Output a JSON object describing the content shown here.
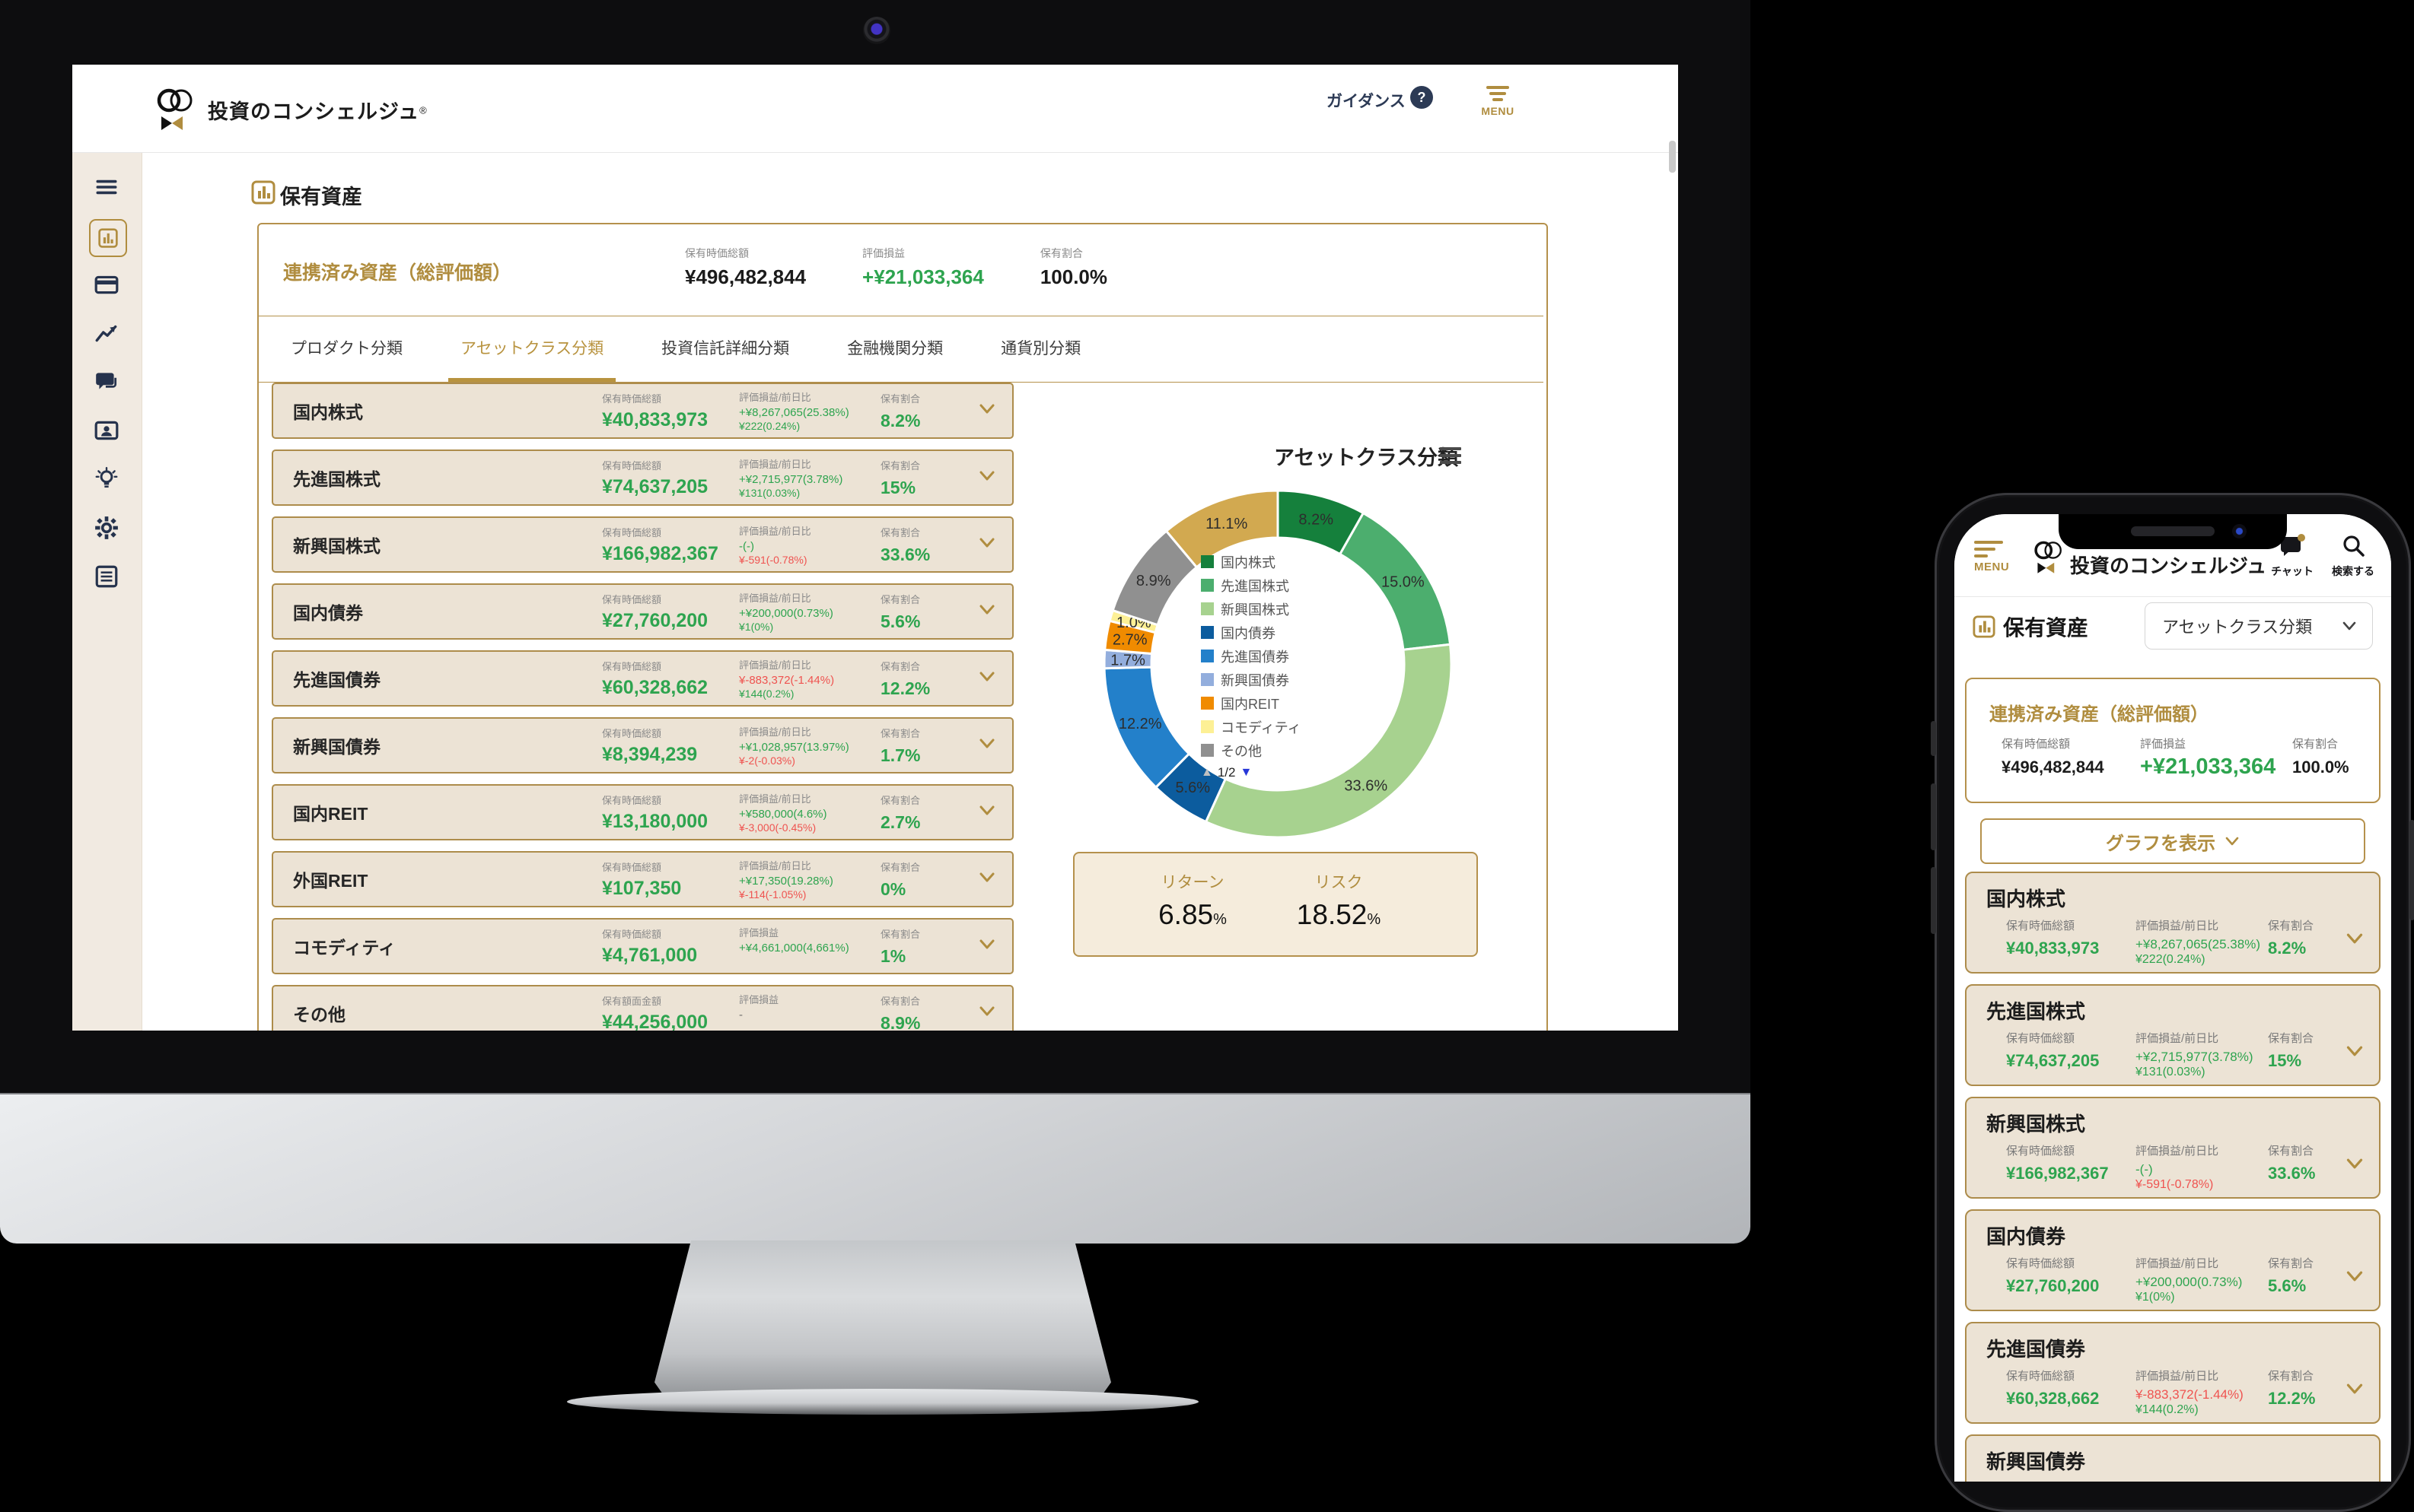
{
  "desktop": {
    "header": {
      "logo_text": "投資のコンシェルジュ",
      "logo_reg": "®",
      "guidance_label": "ガイダンス",
      "help_glyph": "?",
      "menu_label": "MENU"
    },
    "sidebar": {
      "icons": [
        "menu",
        "portfolio",
        "accounts",
        "performance",
        "chat",
        "profile",
        "ideas",
        "settings",
        "reports"
      ],
      "active_icon": "portfolio"
    },
    "page_title": "保有資産",
    "summary": {
      "title": "連携済み資産（総評価額）",
      "cols": [
        {
          "label": "保有時価総額",
          "value": "¥496,482,844",
          "tone": "dark"
        },
        {
          "label": "評価損益",
          "value": "+¥21,033,364",
          "tone": "pos"
        },
        {
          "label": "保有割合",
          "value": "100.0%",
          "tone": "dark"
        }
      ]
    },
    "tabs": [
      {
        "label": "プロダクト分類",
        "active": false
      },
      {
        "label": "アセットクラス分類",
        "active": true
      },
      {
        "label": "投資信託詳細分類",
        "active": false
      },
      {
        "label": "金融機関分類",
        "active": false
      },
      {
        "label": "通貨別分類",
        "active": false
      }
    ],
    "risk_return": {
      "return_label": "リターン",
      "return_value": "6.85",
      "risk_label": "リスク",
      "risk_value": "18.52",
      "pct": "%"
    }
  },
  "assets": [
    {
      "name": "国内株式",
      "amount_label": "保有時価総額",
      "amount": "¥40,833,973",
      "pl_label": "評価損益/前日比",
      "pl1": "+¥8,267,065(25.38%)",
      "pl1_c": "pos",
      "pl2": "¥222(0.24%)",
      "pl2_c": "pos",
      "ratio_label": "保有割合",
      "ratio": "8.2%"
    },
    {
      "name": "先進国株式",
      "amount_label": "保有時価総額",
      "amount": "¥74,637,205",
      "pl_label": "評価損益/前日比",
      "pl1": "+¥2,715,977(3.78%)",
      "pl1_c": "pos",
      "pl2": "¥131(0.03%)",
      "pl2_c": "pos",
      "ratio_label": "保有割合",
      "ratio": "15%"
    },
    {
      "name": "新興国株式",
      "amount_label": "保有時価総額",
      "amount": "¥166,982,367",
      "pl_label": "評価損益/前日比",
      "pl1": "-(-)",
      "pl1_c": "pos",
      "pl2": "¥-591(-0.78%)",
      "pl2_c": "neg",
      "ratio_label": "保有割合",
      "ratio": "33.6%"
    },
    {
      "name": "国内債券",
      "amount_label": "保有時価総額",
      "amount": "¥27,760,200",
      "pl_label": "評価損益/前日比",
      "pl1": "+¥200,000(0.73%)",
      "pl1_c": "pos",
      "pl2": "¥1(0%)",
      "pl2_c": "pos",
      "ratio_label": "保有割合",
      "ratio": "5.6%"
    },
    {
      "name": "先進国債券",
      "amount_label": "保有時価総額",
      "amount": "¥60,328,662",
      "pl_label": "評価損益/前日比",
      "pl1": "¥-883,372(-1.44%)",
      "pl1_c": "neg",
      "pl2": "¥144(0.2%)",
      "pl2_c": "pos",
      "ratio_label": "保有割合",
      "ratio": "12.2%"
    },
    {
      "name": "新興国債券",
      "amount_label": "保有時価総額",
      "amount": "¥8,394,239",
      "pl_label": "評価損益/前日比",
      "pl1": "+¥1,028,957(13.97%)",
      "pl1_c": "pos",
      "pl2": "¥-2(-0.03%)",
      "pl2_c": "neg",
      "ratio_label": "保有割合",
      "ratio": "1.7%"
    },
    {
      "name": "国内REIT",
      "amount_label": "保有時価総額",
      "amount": "¥13,180,000",
      "pl_label": "評価損益/前日比",
      "pl1": "+¥580,000(4.6%)",
      "pl1_c": "pos",
      "pl2": "¥-3,000(-0.45%)",
      "pl2_c": "neg",
      "ratio_label": "保有割合",
      "ratio": "2.7%"
    },
    {
      "name": "外国REIT",
      "amount_label": "保有時価総額",
      "amount": "¥107,350",
      "pl_label": "評価損益/前日比",
      "pl1": "+¥17,350(19.28%)",
      "pl1_c": "pos",
      "pl2": "¥-114(-1.05%)",
      "pl2_c": "neg",
      "ratio_label": "保有割合",
      "ratio": "0%"
    },
    {
      "name": "コモディティ",
      "amount_label": "保有時価総額",
      "amount": "¥4,761,000",
      "pl_label": "評価損益",
      "pl1": "+¥4,661,000(4,661%)",
      "pl1_c": "pos",
      "pl2": "",
      "pl2_c": "",
      "ratio_label": "保有割合",
      "ratio": "1%"
    },
    {
      "name": "その他",
      "amount_label": "保有額面金額",
      "amount": "¥44,256,000",
      "pl_label": "評価損益",
      "pl1": "-",
      "pl1_c": "muted",
      "pl2": "",
      "pl2_c": "",
      "ratio_label": "保有割合",
      "ratio": "8.9%"
    }
  ],
  "chart_data": {
    "type": "pie",
    "subtype": "donut",
    "title": "アセットクラス分類",
    "start_angle_deg": 0,
    "direction": "clockwise",
    "segments": [
      {
        "label": "国内株式",
        "value": 8.2,
        "color": "#15803c"
      },
      {
        "label": "先進国株式",
        "value": 15.0,
        "color": "#4cae6e"
      },
      {
        "label": "新興国株式",
        "value": 33.6,
        "color": "#a7d28f"
      },
      {
        "label": "国内債券",
        "value": 5.6,
        "color": "#0c5c9e"
      },
      {
        "label": "先進国債券",
        "value": 12.2,
        "color": "#2380ca"
      },
      {
        "label": "新興国債券",
        "value": 1.7,
        "color": "#93aedd"
      },
      {
        "label": "国内REIT",
        "value": 2.7,
        "color": "#f08b00"
      },
      {
        "label": "コモディティ",
        "value": 1.0,
        "color": "#fdf095"
      },
      {
        "label": "その他",
        "value": 8.9,
        "color": "#909090"
      },
      {
        "label": "",
        "value": 11.1,
        "color": "#d2a950"
      }
    ],
    "value_labels": [
      "8.2%",
      "15.0%",
      "33.6%",
      "5.6%",
      "12.2%",
      "1.7%",
      "2.7%",
      "1.0%",
      "8.9%",
      "11.1%"
    ],
    "legend": {
      "visible_items": 9,
      "pagination": {
        "up": "▲",
        "current": "1/2",
        "down": "▼"
      },
      "position": "center-of-donut"
    }
  },
  "phone": {
    "header": {
      "menu_label": "MENU",
      "logo_text": "投資のコンシェルジュ",
      "chat_label": "チャット",
      "search_label": "検索する"
    },
    "page_title": "保有資産",
    "dropdown_value": "アセットクラス分類",
    "summary": {
      "title": "連携済み資産（総評価額）",
      "cols": [
        {
          "label": "保有時価総額",
          "value": "¥496,482,844",
          "tone": "dark"
        },
        {
          "label": "評価損益",
          "value": "+¥21,033,364",
          "tone": "pos-big"
        },
        {
          "label": "保有割合",
          "value": "100.0%",
          "tone": "dark"
        }
      ]
    },
    "graph_button_label": "グラフを表示",
    "visible_asset_count": 6
  }
}
